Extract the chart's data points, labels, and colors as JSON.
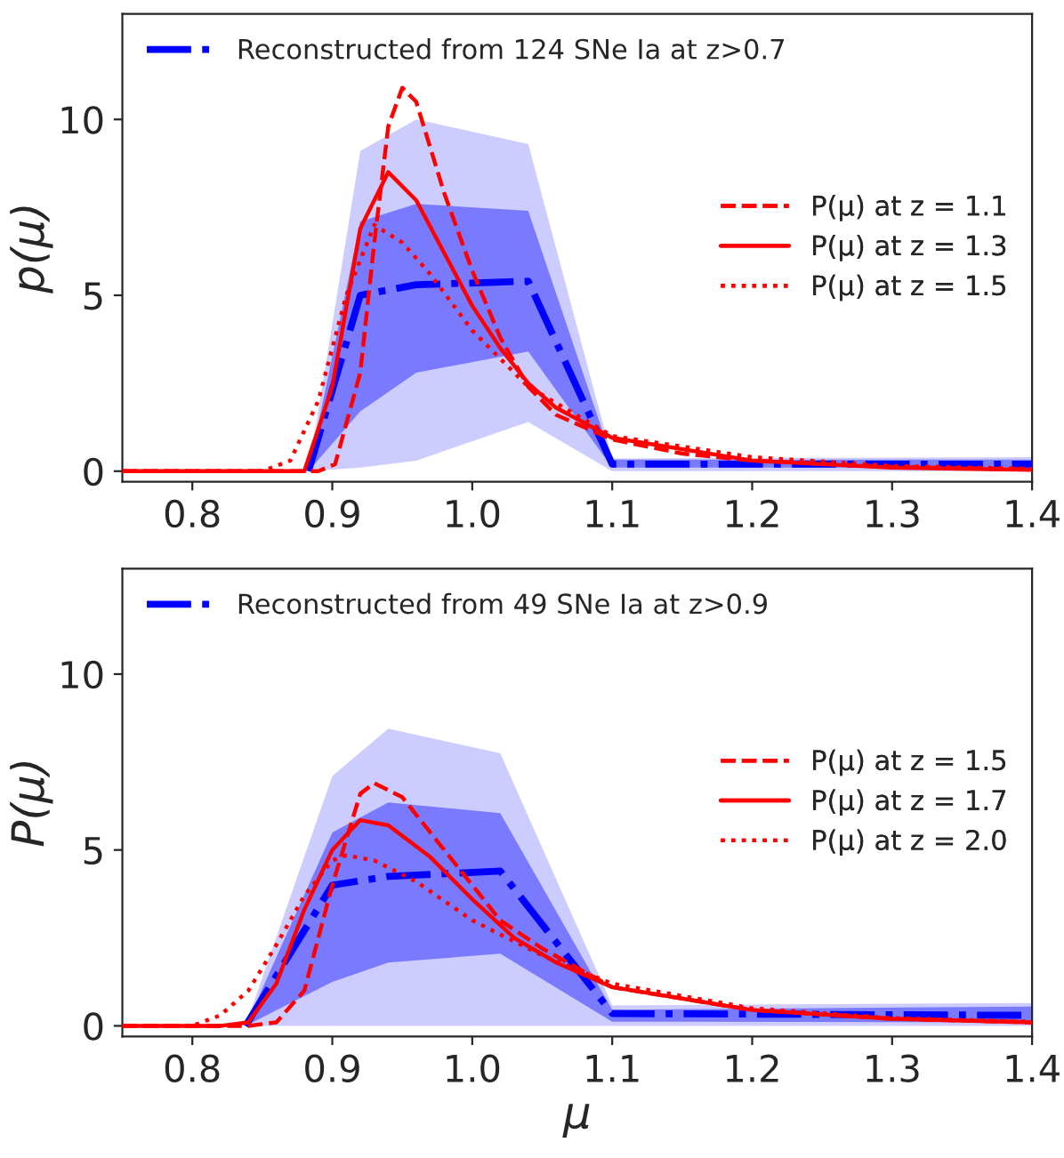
{
  "chart_data": [
    {
      "type": "line",
      "ylabel": "p(μ)",
      "xlim": [
        0.75,
        1.4
      ],
      "xticks": [
        {
          "value": 0.8,
          "label": "0.8"
        },
        {
          "value": 0.9,
          "label": "0.9"
        },
        {
          "value": 1.0,
          "label": "1.0"
        },
        {
          "value": 1.1,
          "label": "1.1"
        },
        {
          "value": 1.2,
          "label": "1.2"
        },
        {
          "value": 1.3,
          "label": "1.3"
        },
        {
          "value": 1.4,
          "label": "1.4"
        }
      ],
      "ylim": [
        -0.3,
        13
      ],
      "yticks": [
        0,
        5,
        10
      ],
      "grid": false,
      "legend": "right",
      "marker": "none",
      "series": [
        {
          "color": "#ccccff",
          "x": [
            0.883,
            0.92,
            0.96,
            1.04,
            1.1,
            1.4
          ],
          "values": [
            null,
            null,
            null,
            null,
            null,
            null
          ],
          "lower": [
            0,
            0.1,
            0.3,
            1.4,
            0,
            0
          ],
          "upper": [
            0,
            9.1,
            10.0,
            9.3,
            0.36,
            0.4
          ]
        },
        {
          "name": "Reconstructed from 124 SNe Ia at z>0.7",
          "color": "#0000ff",
          "line_style": "dashdot",
          "x": [
            0.883,
            0.92,
            0.96,
            1.04,
            1.1,
            1.4
          ],
          "values": [
            0,
            5.0,
            5.3,
            5.4,
            0.2,
            0.2
          ],
          "lower": [
            0,
            1.7,
            2.8,
            3.4,
            0.1,
            0.1
          ],
          "upper": [
            0,
            7.1,
            7.6,
            7.4,
            0.33,
            0.33
          ]
        },
        {
          "name": "P(μ) at z = 1.1",
          "color": "#ff0000",
          "line_style": "dashed",
          "x": [
            0.75,
            0.89,
            0.902,
            0.92,
            0.93,
            0.94,
            0.95,
            0.96,
            0.98,
            1.0,
            1.02,
            1.04,
            1.06,
            1.1,
            1.15,
            1.2,
            1.3,
            1.4
          ],
          "values": [
            0,
            0,
            0.2,
            2.8,
            6.5,
            9.8,
            10.9,
            10.5,
            7.9,
            5.7,
            3.8,
            2.4,
            1.6,
            0.9,
            0.5,
            0.3,
            0.12,
            0.05
          ]
        },
        {
          "name": "P(μ) at z = 1.3",
          "color": "#ff0000",
          "line_style": "solid",
          "x": [
            0.75,
            0.88,
            0.9,
            0.92,
            0.94,
            0.96,
            0.98,
            1.0,
            1.02,
            1.04,
            1.06,
            1.1,
            1.2,
            1.3,
            1.4
          ],
          "values": [
            0,
            0,
            2.4,
            6.9,
            8.5,
            7.7,
            6.2,
            4.7,
            3.5,
            2.5,
            1.8,
            0.95,
            0.3,
            0.1,
            0.04
          ]
        },
        {
          "name": "P(μ) at z = 1.5",
          "color": "#ff0000",
          "line_style": "dotted",
          "x": [
            0.75,
            0.85,
            0.87,
            0.89,
            0.91,
            0.93,
            0.95,
            0.97,
            1.0,
            1.02,
            1.04,
            1.1,
            1.2,
            1.3,
            1.4
          ],
          "values": [
            0,
            0,
            0.3,
            2.0,
            5.0,
            7.0,
            6.5,
            5.6,
            4.0,
            3.2,
            2.4,
            1.0,
            0.4,
            0.15,
            0.07
          ]
        }
      ]
    },
    {
      "type": "line",
      "xlabel": "μ",
      "ylabel": "P(μ)",
      "xlim": [
        0.75,
        1.4
      ],
      "xticks": [
        {
          "value": 0.8,
          "label": "0.8"
        },
        {
          "value": 0.9,
          "label": "0.9"
        },
        {
          "value": 1.0,
          "label": "1.0"
        },
        {
          "value": 1.1,
          "label": "1.1"
        },
        {
          "value": 1.2,
          "label": "1.2"
        },
        {
          "value": 1.3,
          "label": "1.3"
        },
        {
          "value": 1.4,
          "label": "1.4"
        }
      ],
      "ylim": [
        -0.3,
        13
      ],
      "yticks": [
        0,
        5,
        10
      ],
      "grid": false,
      "legend": "right",
      "marker": "none",
      "series": [
        {
          "color": "#ccccff",
          "x": [
            0.838,
            0.9,
            0.94,
            1.02,
            1.1,
            1.4
          ],
          "values": [
            null,
            null,
            null,
            null,
            null,
            null
          ],
          "lower": [
            0,
            0,
            0,
            0,
            0,
            0
          ],
          "upper": [
            0,
            7.1,
            8.45,
            7.75,
            0.58,
            0.65
          ]
        },
        {
          "name": "Reconstructed from 49 SNe Ia at z>0.9",
          "color": "#0000ff",
          "line_style": "dashdot",
          "x": [
            0.838,
            0.9,
            0.94,
            1.02,
            1.1,
            1.4
          ],
          "values": [
            0,
            4.0,
            4.25,
            4.4,
            0.35,
            0.3
          ],
          "lower": [
            0,
            1.25,
            1.8,
            2.05,
            0.12,
            0.1
          ],
          "upper": [
            0,
            5.5,
            6.35,
            6.05,
            0.46,
            0.55
          ]
        },
        {
          "name": "P(μ) at z = 1.5",
          "color": "#ff0000",
          "line_style": "dashed",
          "x": [
            0.75,
            0.84,
            0.86,
            0.88,
            0.9,
            0.92,
            0.93,
            0.95,
            0.98,
            1.0,
            1.02,
            1.05,
            1.1,
            1.2,
            1.3,
            1.4
          ],
          "values": [
            0,
            0,
            0.1,
            1.0,
            4.0,
            6.6,
            6.9,
            6.5,
            5.0,
            4.0,
            3.0,
            2.2,
            1.1,
            0.45,
            0.2,
            0.1
          ]
        },
        {
          "name": "P(μ) at z = 1.7",
          "color": "#ff0000",
          "line_style": "solid",
          "x": [
            0.75,
            0.82,
            0.84,
            0.86,
            0.88,
            0.9,
            0.92,
            0.94,
            0.97,
            1.0,
            1.03,
            1.06,
            1.1,
            1.2,
            1.3,
            1.4
          ],
          "values": [
            0,
            0,
            0.1,
            1.2,
            3.3,
            5.0,
            5.85,
            5.7,
            4.8,
            3.6,
            2.5,
            1.8,
            1.1,
            0.45,
            0.2,
            0.1
          ]
        },
        {
          "name": "P(μ) at z = 2.0",
          "color": "#ff0000",
          "line_style": "dotted",
          "x": [
            0.75,
            0.8,
            0.82,
            0.84,
            0.86,
            0.88,
            0.9,
            0.91,
            0.93,
            0.96,
            1.0,
            1.05,
            1.1,
            1.2,
            1.3,
            1.4
          ],
          "values": [
            0,
            0,
            0.3,
            1.0,
            2.3,
            3.7,
            4.7,
            4.85,
            4.7,
            4.1,
            3.0,
            2.0,
            1.2,
            0.5,
            0.22,
            0.12
          ]
        }
      ]
    }
  ]
}
